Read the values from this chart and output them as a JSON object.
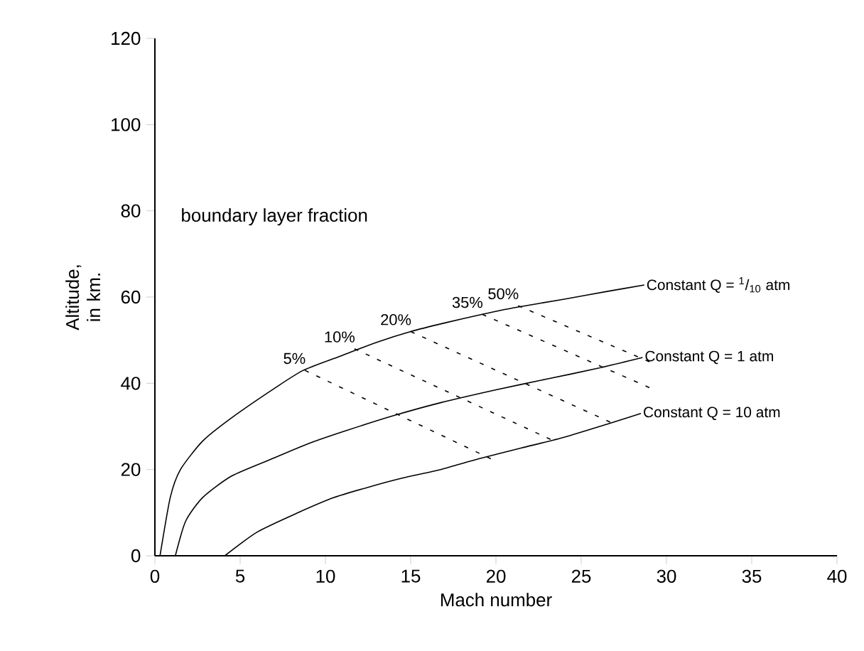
{
  "chart_data": {
    "type": "line",
    "xlabel": "Mach number",
    "ylabel": "Altitude, in km.",
    "xlim": [
      0,
      40
    ],
    "ylim": [
      0,
      120
    ],
    "xticks": [
      0,
      5,
      10,
      15,
      20,
      25,
      30,
      35,
      40
    ],
    "yticks": [
      0,
      20,
      40,
      60,
      80,
      100,
      120
    ],
    "grid": false,
    "legend": false,
    "marker": "none",
    "line_style": "solid",
    "series": [
      {
        "name": "Constant Q = $^{1}$/$_{10}$ atm",
        "color": "#000000",
        "x": [
          0.3,
          0.9,
          1.5,
          2.8,
          4.5,
          7,
          8.7,
          11,
          13,
          15,
          17,
          19.2,
          21,
          24,
          26.5,
          28.7
        ],
        "values": [
          0,
          13.5,
          20,
          26.6,
          32,
          38.8,
          43,
          46.5,
          49.5,
          52,
          54,
          56,
          57.5,
          59.5,
          61.3,
          62.8
        ]
      },
      {
        "name": "Constant Q = 1 atm",
        "color": "#000000",
        "x": [
          1.2,
          1.8,
          2.8,
          4.5,
          7,
          9,
          11.2,
          14,
          16.75,
          20,
          23,
          26,
          28.6
        ],
        "values": [
          0,
          8,
          13.5,
          18.5,
          22.7,
          26,
          29,
          32.5,
          35.5,
          38.5,
          41,
          43.5,
          46
        ]
      },
      {
        "name": "Constant Q = 10 atm",
        "color": "#000000",
        "x": [
          4.1,
          6,
          8.4,
          10.5,
          12.6,
          14.5,
          16.75,
          19,
          21.5,
          24,
          26.5,
          28.5
        ],
        "values": [
          0,
          5.5,
          10,
          13.5,
          16,
          18,
          20,
          22.5,
          25,
          27.5,
          30.5,
          33
        ]
      },
      {
        "type": "line",
        "line_style": "dashed",
        "color": "#000000",
        "x": [
          8.8,
          19.7
        ],
        "values": [
          43,
          22.5
        ]
      },
      {
        "type": "line",
        "line_style": "dashed",
        "color": "#000000",
        "x": [
          11.7,
          23.2
        ],
        "values": [
          48,
          27
        ]
      },
      {
        "type": "line",
        "line_style": "dashed",
        "color": "#000000",
        "x": [
          15,
          26.7
        ],
        "values": [
          52,
          31
        ]
      },
      {
        "type": "line",
        "line_style": "dashed",
        "color": "#000000",
        "x": [
          19.2,
          29
        ],
        "values": [
          56,
          39
        ]
      },
      {
        "type": "line",
        "line_style": "dashed",
        "color": "#000000",
        "x": [
          21.3,
          29
        ],
        "values": [
          58,
          45
        ]
      }
    ],
    "annotations": [
      "boundary layer fraction",
      {
        "text": "5%",
        "x": 8.8,
        "y": 43
      },
      {
        "text": "10%",
        "x": 11.7,
        "y": 48
      },
      {
        "text": "20%",
        "x": 15,
        "y": 52
      },
      {
        "text": "35%",
        "x": 19.2,
        "y": 56
      },
      {
        "text": "50%",
        "x": 21.3,
        "y": 58
      }
    ]
  }
}
